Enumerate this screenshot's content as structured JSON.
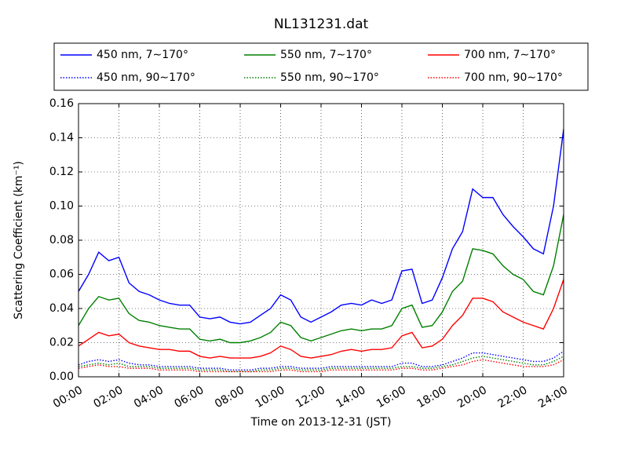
{
  "chart_data": {
    "type": "line",
    "title": "NL131231.dat",
    "xlabel": "Time on 2013-12-31 (JST)",
    "ylabel": "Scattering Coefficient (km⁻¹)",
    "x": [
      "00:00",
      "00:30",
      "01:00",
      "01:30",
      "02:00",
      "02:30",
      "03:00",
      "03:30",
      "04:00",
      "04:30",
      "05:00",
      "05:30",
      "06:00",
      "06:30",
      "07:00",
      "07:30",
      "08:00",
      "08:30",
      "09:00",
      "09:30",
      "10:00",
      "10:30",
      "11:00",
      "11:30",
      "12:00",
      "12:30",
      "13:00",
      "13:30",
      "14:00",
      "14:30",
      "15:00",
      "15:30",
      "16:00",
      "16:30",
      "17:00",
      "17:30",
      "18:00",
      "18:30",
      "19:00",
      "19:30",
      "20:00",
      "20:30",
      "21:00",
      "21:30",
      "22:00",
      "22:30",
      "23:00",
      "23:30",
      "24:00"
    ],
    "xlim": [
      "00:00",
      "24:00"
    ],
    "xticks": [
      "00:00",
      "02:00",
      "04:00",
      "06:00",
      "08:00",
      "10:00",
      "12:00",
      "14:00",
      "16:00",
      "18:00",
      "20:00",
      "22:00",
      "24:00"
    ],
    "ylim": [
      0,
      0.16
    ],
    "yticks": [
      {
        "value": 0,
        "label": "0.00"
      },
      {
        "value": 0.02,
        "label": "0.02"
      },
      {
        "value": 0.04,
        "label": "0.04"
      },
      {
        "value": 0.06,
        "label": "0.06"
      },
      {
        "value": 0.08,
        "label": "0.08"
      },
      {
        "value": 0.1,
        "label": "0.10"
      },
      {
        "value": 0.12,
        "label": "0.12"
      },
      {
        "value": 0.14,
        "label": "0.14"
      },
      {
        "value": 0.16,
        "label": "0.16"
      }
    ],
    "grid": true,
    "legend": "top",
    "series": [
      {
        "name": "450 nm, 7∼170°",
        "color": "#0000ff",
        "style": "solid",
        "values": [
          0.05,
          0.06,
          0.073,
          0.068,
          0.07,
          0.055,
          0.05,
          0.048,
          0.045,
          0.043,
          0.042,
          0.042,
          0.035,
          0.034,
          0.035,
          0.032,
          0.031,
          0.032,
          0.036,
          0.04,
          0.048,
          0.045,
          0.035,
          0.032,
          0.035,
          0.038,
          0.042,
          0.043,
          0.042,
          0.045,
          0.043,
          0.045,
          0.062,
          0.063,
          0.043,
          0.045,
          0.058,
          0.075,
          0.085,
          0.11,
          0.105,
          0.105,
          0.095,
          0.088,
          0.082,
          0.075,
          0.072,
          0.1,
          0.145
        ]
      },
      {
        "name": "550 nm, 7∼170°",
        "color": "#008000",
        "style": "solid",
        "values": [
          0.03,
          0.04,
          0.047,
          0.045,
          0.046,
          0.037,
          0.033,
          0.032,
          0.03,
          0.029,
          0.028,
          0.028,
          0.022,
          0.021,
          0.022,
          0.02,
          0.02,
          0.021,
          0.023,
          0.026,
          0.032,
          0.03,
          0.023,
          0.021,
          0.023,
          0.025,
          0.027,
          0.028,
          0.027,
          0.028,
          0.028,
          0.03,
          0.04,
          0.042,
          0.029,
          0.03,
          0.038,
          0.05,
          0.056,
          0.075,
          0.074,
          0.072,
          0.065,
          0.06,
          0.057,
          0.05,
          0.048,
          0.065,
          0.095
        ]
      },
      {
        "name": "700 nm, 7∼170°",
        "color": "#ff0000",
        "style": "solid",
        "values": [
          0.018,
          0.022,
          0.026,
          0.024,
          0.025,
          0.02,
          0.018,
          0.017,
          0.016,
          0.016,
          0.015,
          0.015,
          0.012,
          0.011,
          0.012,
          0.011,
          0.011,
          0.011,
          0.012,
          0.014,
          0.018,
          0.016,
          0.012,
          0.011,
          0.012,
          0.013,
          0.015,
          0.016,
          0.015,
          0.016,
          0.016,
          0.017,
          0.024,
          0.026,
          0.017,
          0.018,
          0.022,
          0.03,
          0.036,
          0.046,
          0.046,
          0.044,
          0.038,
          0.035,
          0.032,
          0.03,
          0.028,
          0.04,
          0.057
        ]
      },
      {
        "name": "450 nm, 90∼170°",
        "color": "#0000ff",
        "style": "dotted",
        "values": [
          0.007,
          0.009,
          0.01,
          0.009,
          0.01,
          0.008,
          0.007,
          0.007,
          0.006,
          0.006,
          0.006,
          0.006,
          0.005,
          0.005,
          0.005,
          0.004,
          0.004,
          0.004,
          0.005,
          0.005,
          0.006,
          0.006,
          0.005,
          0.005,
          0.005,
          0.006,
          0.006,
          0.006,
          0.006,
          0.006,
          0.006,
          0.006,
          0.008,
          0.008,
          0.006,
          0.006,
          0.007,
          0.009,
          0.011,
          0.014,
          0.014,
          0.013,
          0.012,
          0.011,
          0.01,
          0.009,
          0.009,
          0.011,
          0.015
        ]
      },
      {
        "name": "550 nm, 90∼170°",
        "color": "#008000",
        "style": "dotted",
        "values": [
          0.006,
          0.007,
          0.008,
          0.007,
          0.008,
          0.006,
          0.006,
          0.006,
          0.005,
          0.005,
          0.005,
          0.005,
          0.004,
          0.004,
          0.004,
          0.003,
          0.003,
          0.003,
          0.004,
          0.004,
          0.005,
          0.005,
          0.004,
          0.004,
          0.004,
          0.005,
          0.005,
          0.005,
          0.005,
          0.005,
          0.005,
          0.005,
          0.006,
          0.006,
          0.005,
          0.005,
          0.006,
          0.007,
          0.009,
          0.011,
          0.012,
          0.011,
          0.01,
          0.009,
          0.008,
          0.007,
          0.007,
          0.009,
          0.012
        ]
      },
      {
        "name": "700 nm, 90∼170°",
        "color": "#ff0000",
        "style": "dotted",
        "values": [
          0.005,
          0.006,
          0.007,
          0.006,
          0.006,
          0.005,
          0.005,
          0.005,
          0.004,
          0.004,
          0.004,
          0.004,
          0.003,
          0.003,
          0.003,
          0.003,
          0.003,
          0.003,
          0.003,
          0.003,
          0.004,
          0.004,
          0.003,
          0.003,
          0.003,
          0.004,
          0.004,
          0.004,
          0.004,
          0.004,
          0.004,
          0.004,
          0.005,
          0.005,
          0.004,
          0.004,
          0.005,
          0.006,
          0.007,
          0.009,
          0.01,
          0.009,
          0.008,
          0.007,
          0.006,
          0.006,
          0.006,
          0.007,
          0.01
        ]
      }
    ]
  }
}
